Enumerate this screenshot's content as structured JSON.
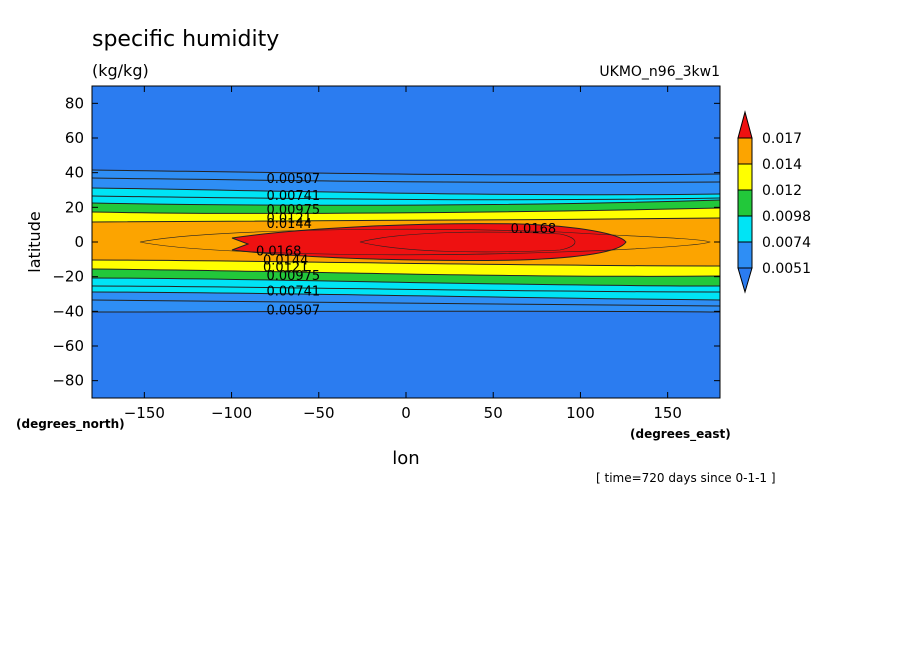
{
  "chart_data": {
    "type": "heatmap",
    "title": "specific humidity",
    "units": "(kg/kg)",
    "model": "UKMO_n96_3kw1",
    "xlabel": "lon",
    "ylabel": "latitude",
    "x_units": "(degrees_east)",
    "y_units": "(degrees_north)",
    "time_note": "[ time=720 days since 0-1-1 ]",
    "xlim": [
      -180,
      180
    ],
    "ylim": [
      -90,
      90
    ],
    "x_ticks": [
      -150,
      -100,
      -50,
      0,
      50,
      100,
      150
    ],
    "y_ticks": [
      80,
      60,
      40,
      20,
      0,
      -20,
      -40,
      -60,
      -80
    ],
    "colorbar": {
      "labels": [
        "0.017",
        "0.014",
        "0.012",
        "0.0098",
        "0.0074",
        "0.0051"
      ],
      "colors": {
        "below": "#2b7cf0",
        "b1": "#2e8ef5",
        "b2": "#00e4f5",
        "b3": "#22c83a",
        "b4": "#ffff00",
        "b5": "#fca400",
        "above": "#ee1111"
      }
    },
    "contour_labels": [
      {
        "text": "0.00507",
        "lon": -80,
        "lat": 37
      },
      {
        "text": "0.00741",
        "lon": -80,
        "lat": 27
      },
      {
        "text": "0.00975",
        "lon": -80,
        "lat": 19
      },
      {
        "text": "0.0121",
        "lon": -80,
        "lat": 14
      },
      {
        "text": "0.0144",
        "lon": -80,
        "lat": 11
      },
      {
        "text": "0.0168",
        "lon": 60,
        "lat": 8
      },
      {
        "text": "0.0168",
        "lon": -86,
        "lat": -5
      },
      {
        "text": "0.0144",
        "lon": -82,
        "lat": -10
      },
      {
        "text": "0.0121",
        "lon": -82,
        "lat": -14
      },
      {
        "text": "0.00975",
        "lon": -80,
        "lat": -19
      },
      {
        "text": "0.00741",
        "lon": -80,
        "lat": -28
      },
      {
        "text": "0.00507",
        "lon": -80,
        "lat": -39
      }
    ],
    "grid": false
  }
}
